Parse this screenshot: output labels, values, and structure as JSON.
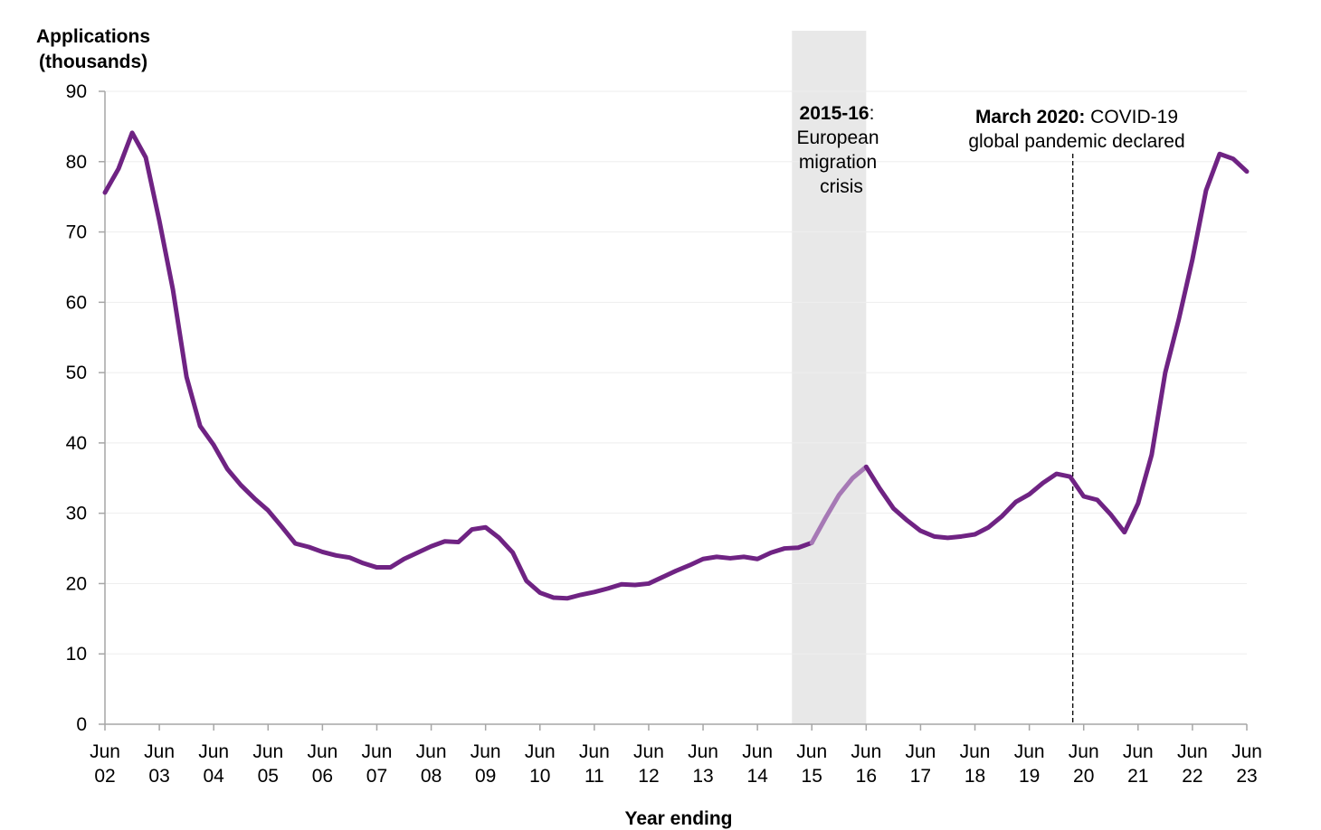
{
  "chart_data": {
    "type": "line",
    "ylabel_lines": [
      "Applications",
      "(thousands)"
    ],
    "xlabel": "Year ending",
    "ylim": [
      0,
      90
    ],
    "yticks": [
      0,
      10,
      20,
      30,
      40,
      50,
      60,
      70,
      80,
      90
    ],
    "grid": true,
    "xticks": [
      {
        "q": 0,
        "line1": "Jun",
        "line2": "02"
      },
      {
        "q": 4,
        "line1": "Jun",
        "line2": "03"
      },
      {
        "q": 8,
        "line1": "Jun",
        "line2": "04"
      },
      {
        "q": 12,
        "line1": "Jun",
        "line2": "05"
      },
      {
        "q": 16,
        "line1": "Jun",
        "line2": "06"
      },
      {
        "q": 20,
        "line1": "Jun",
        "line2": "07"
      },
      {
        "q": 24,
        "line1": "Jun",
        "line2": "08"
      },
      {
        "q": 28,
        "line1": "Jun",
        "line2": "09"
      },
      {
        "q": 32,
        "line1": "Jun",
        "line2": "10"
      },
      {
        "q": 36,
        "line1": "Jun",
        "line2": "11"
      },
      {
        "q": 40,
        "line1": "Jun",
        "line2": "12"
      },
      {
        "q": 44,
        "line1": "Jun",
        "line2": "13"
      },
      {
        "q": 48,
        "line1": "Jun",
        "line2": "14"
      },
      {
        "q": 52,
        "line1": "Jun",
        "line2": "15"
      },
      {
        "q": 56,
        "line1": "Jun",
        "line2": "16"
      },
      {
        "q": 60,
        "line1": "Jun",
        "line2": "17"
      },
      {
        "q": 64,
        "line1": "Jun",
        "line2": "18"
      },
      {
        "q": 68,
        "line1": "Jun",
        "line2": "19"
      },
      {
        "q": 72,
        "line1": "Jun",
        "line2": "20"
      },
      {
        "q": 76,
        "line1": "Jun",
        "line2": "21"
      },
      {
        "q": 80,
        "line1": "Jun",
        "line2": "22"
      },
      {
        "q": 84,
        "line1": "Jun",
        "line2": "23"
      }
    ],
    "series": [
      {
        "color": "#6f2383",
        "highlight_color": "#a679b5",
        "values": [
          75.6,
          79.0,
          84.1,
          80.6,
          71.6,
          61.8,
          49.4,
          42.4,
          39.7,
          36.3,
          34.0,
          32.1,
          30.4,
          28.1,
          25.7,
          25.2,
          24.5,
          24.0,
          23.7,
          22.9,
          22.3,
          22.3,
          23.5,
          24.4,
          25.3,
          26.0,
          25.9,
          27.7,
          28.0,
          26.5,
          24.4,
          20.4,
          18.7,
          18.0,
          17.9,
          18.4,
          18.8,
          19.3,
          19.9,
          19.8,
          20.0,
          20.9,
          21.8,
          22.6,
          23.5,
          23.8,
          23.6,
          23.8,
          23.5,
          24.4,
          25.0,
          25.1,
          25.8,
          29.3,
          32.6,
          35.0,
          36.6,
          33.5,
          30.7,
          29.0,
          27.5,
          26.7,
          26.5,
          26.7,
          27.0,
          28.0,
          29.6,
          31.6,
          32.7,
          34.3,
          35.6,
          35.2,
          32.4,
          31.9,
          29.8,
          27.3,
          31.4,
          38.3,
          50.0,
          57.6,
          66.1,
          75.9,
          81.1,
          80.4,
          78.6
        ]
      }
    ],
    "highlight_range_q": [
      52,
      56
    ],
    "event_line_q": 71.0,
    "annotations": [
      {
        "bold": "2015-16",
        "rest": ":",
        "lines": [
          "European",
          "migration",
          "crisis"
        ]
      },
      {
        "bold": "March 2020:",
        "rest": " COVID-19",
        "lines": [
          "global pandemic declared"
        ]
      }
    ]
  },
  "colors": {
    "line": "#6f2383",
    "highlight_line": "#a679b5",
    "shade": "#e8e8e8",
    "grid": "#eeeeee",
    "axis": "#a6a6a6"
  }
}
